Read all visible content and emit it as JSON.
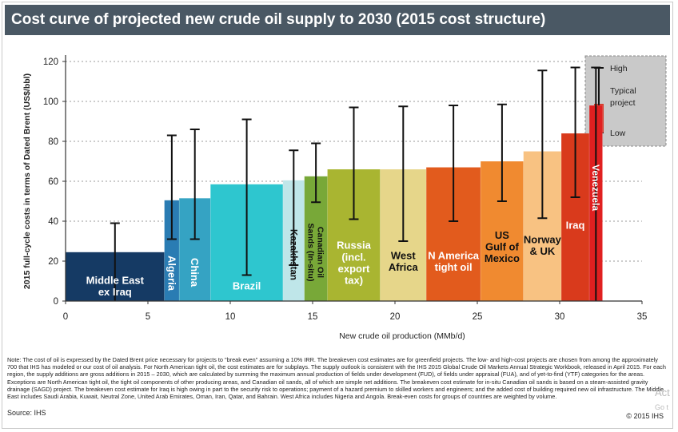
{
  "title": "Cost curve of projected new crude oil supply to 2030 (2015 cost structure)",
  "note": "Note: The cost of oil is expressed by the Dated Brent price necessary for projects to \"break even\" assuming a 10% IRR. The breakeven cost estimates are for greenfield projects. The low- and high-cost projects are chosen from among the approximately 700 that IHS has modeled or our cost of oil analysis. For North American tight oil, the cost estimates are for subplays. The supply outlook is consistent with the IHS 2015 Global Crude Oil Markets Annual Strategic Workbook, released in April 2015. For each region, the supply additions are gross additions in 2015 – 2030, which are calculated by summing the maximum annual production of fields under development (FUD), of fields under appraisal (FUA), and of yet-to-find (YTF) categories for the areas. Exceptions are North American tight oil, the tight oil components of other producing areas, and Canadian oil sands, all of which are simple net additions. The breakeven cost estimate for in-situ Canadian oil sands is based on a steam-assisted gravity drainage (SAGD) project. The breakeven cost estimate for Iraq is high owing in part to the security risk to operations; payment of a hazard premium to skilled workers and engineers; and the added cost of building required new oil infrastructure. The Middle East includes Saudi Arabia, Kuwait, Neutral Zone, United Arab Emirates, Oman, Iran, Qatar, and Bahrain. West Africa includes Nigeria and Angola. Break-even costs for groups of countries are weighted by volume.",
  "source": "Source: IHS",
  "copyright": "© 2015 IHS",
  "ghost": {
    "line1": "Act",
    "line2": "Go t"
  },
  "chart_data": {
    "type": "bar",
    "title": "Cost curve of projected new crude oil supply to 2030 (2015 cost structure)",
    "xlabel": "New crude oil production (MMb/d)",
    "ylabel": "2015 full-cycle costs in terms of Dated Brent (US$/bbl)",
    "xlim": [
      0,
      35
    ],
    "ylim": [
      0,
      120
    ],
    "xticks": [
      0,
      5,
      10,
      15,
      20,
      25,
      30,
      35
    ],
    "yticks": [
      0,
      20,
      40,
      60,
      80,
      100,
      120
    ],
    "grid": "horizontal dotted",
    "legend": {
      "position": "top-right",
      "high": "High",
      "typical": "Typical project",
      "low": "Low"
    },
    "bars": [
      {
        "label": "Middle East ex Iraq",
        "x0": 0.0,
        "x1": 6.0,
        "typical": 24.5,
        "low": 0,
        "high": 39,
        "color": "#153a64",
        "text_color": "#ffffff",
        "rotated": false
      },
      {
        "label": "Algeria",
        "x0": 6.0,
        "x1": 6.9,
        "typical": 50.5,
        "low": 31,
        "high": 83,
        "color": "#2a7cb3",
        "text_color": "#ffffff",
        "rotated": true
      },
      {
        "label": "China",
        "x0": 6.9,
        "x1": 8.8,
        "typical": 51.5,
        "low": 31,
        "high": 86,
        "color": "#35a3c3",
        "text_color": "#ffffff",
        "rotated": true
      },
      {
        "label": "Brazil",
        "x0": 8.8,
        "x1": 13.2,
        "typical": 58.5,
        "low": 13,
        "high": 91,
        "color": "#2ec6cf",
        "text_color": "#ffffff",
        "rotated": false
      },
      {
        "label": "Kazakhstan",
        "x0": 13.2,
        "x1": 14.5,
        "typical": 60.5,
        "low": 18,
        "high": 75.5,
        "color": "#bfe6e9",
        "text_color": "#111111",
        "rotated": true
      },
      {
        "label": "Canadian Oil Sands (In-situ)",
        "x0": 14.5,
        "x1": 15.9,
        "typical": 62.5,
        "low": 49.5,
        "high": 79,
        "color": "#78a838",
        "text_color": "#111111",
        "rotated": true
      },
      {
        "label": "Russia (incl. export tax)",
        "x0": 15.9,
        "x1": 19.1,
        "typical": 66,
        "low": 41,
        "high": 97,
        "color": "#a9b531",
        "text_color": "#ffffff",
        "rotated": false
      },
      {
        "label": "West Africa",
        "x0": 19.1,
        "x1": 21.9,
        "typical": 66,
        "low": 30,
        "high": 97.5,
        "color": "#e6d68a",
        "text_color": "#111111",
        "rotated": false
      },
      {
        "label": "N America tight oil",
        "x0": 21.9,
        "x1": 25.2,
        "typical": 67,
        "low": 40,
        "high": 98,
        "color": "#e25b1d",
        "text_color": "#ffffff",
        "rotated": false
      },
      {
        "label": "US Gulf of Mexico",
        "x0": 25.2,
        "x1": 27.8,
        "typical": 70,
        "low": 50,
        "high": 98.5,
        "color": "#f08a30",
        "text_color": "#111111",
        "rotated": false
      },
      {
        "label": "Norway & UK",
        "x0": 27.8,
        "x1": 30.1,
        "typical": 75,
        "low": 41.5,
        "high": 115.5,
        "color": "#f8c282",
        "text_color": "#111111",
        "rotated": false
      },
      {
        "label": "Iraq",
        "x0": 30.1,
        "x1": 31.8,
        "typical": 84,
        "low": 52,
        "high": 117,
        "color": "#d93a1c",
        "text_color": "#ffffff",
        "rotated": false
      },
      {
        "label": "Venezuela",
        "x0": 31.8,
        "x1": 32.6,
        "typical": 98,
        "low": 0,
        "high": 117,
        "color": "#e02020",
        "text_color": "#ffffff",
        "rotated": true
      }
    ]
  }
}
